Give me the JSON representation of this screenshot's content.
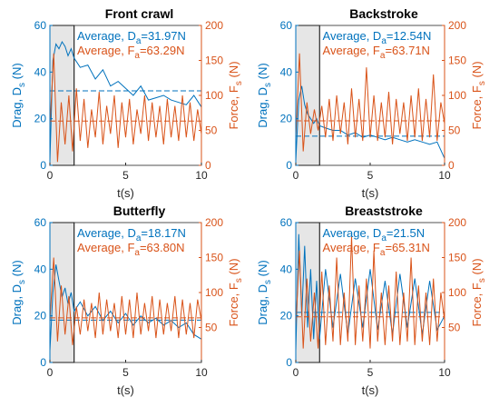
{
  "colors": {
    "drag": "#0072BD",
    "force": "#D95319",
    "axis_text": "#262626",
    "shade": "#e6e6e6"
  },
  "chart_data": [
    {
      "type": "line",
      "title": "Front crawl",
      "xlabel": "t(s)",
      "ylabel_left": "Drag, D",
      "ylabel_left_sub": "s",
      "ylabel_left_unit": " (N)",
      "ylabel_right": "Force, F",
      "ylabel_right_sub": "s",
      "ylabel_right_unit": " (N)",
      "xlim": [
        0,
        10
      ],
      "ylim_left": [
        0,
        60
      ],
      "ylim_right": [
        0,
        200
      ],
      "xticks": [
        "0",
        "5",
        "10"
      ],
      "yticks_left": [
        "0",
        "20",
        "40",
        "60"
      ],
      "yticks_right": [
        "0",
        "50",
        "100",
        "150",
        "200"
      ],
      "shaded_region": [
        0,
        1.6
      ],
      "series": [
        {
          "name": "Drag",
          "axis": "left",
          "average_label": "Average, D",
          "average_sub": "a",
          "average_value": "=31.97N",
          "average": 31.97,
          "x": [
            0,
            0.2,
            0.4,
            0.6,
            0.8,
            1.0,
            1.2,
            1.4,
            1.6,
            2.0,
            2.5,
            3.0,
            3.5,
            4.0,
            4.5,
            5.0,
            5.5,
            6.0,
            6.5,
            7.0,
            7.5,
            8.0,
            8.5,
            9.0,
            9.5,
            10.0
          ],
          "y": [
            2,
            45,
            52,
            50,
            53,
            51,
            47,
            50,
            46,
            42,
            43,
            37,
            41,
            34,
            36,
            33,
            30,
            34,
            28,
            29,
            30,
            28,
            27,
            26,
            30,
            25
          ]
        },
        {
          "name": "Force",
          "axis": "right",
          "average_label": "Average, F",
          "average_sub": "a",
          "average_value": "=63.29N",
          "average": 63.29,
          "x": [
            0,
            0.25,
            0.5,
            0.75,
            1.0,
            1.25,
            1.5,
            1.75,
            2.0,
            2.25,
            2.5,
            2.75,
            3.0,
            3.25,
            3.5,
            3.75,
            4.0,
            4.25,
            4.5,
            4.75,
            5.0,
            5.25,
            5.5,
            5.75,
            6.0,
            6.25,
            6.5,
            6.75,
            7.0,
            7.25,
            7.5,
            7.75,
            8.0,
            8.25,
            8.5,
            8.75,
            9.0,
            9.25,
            9.5,
            9.75,
            10.0
          ],
          "y": [
            55,
            160,
            5,
            90,
            30,
            100,
            20,
            110,
            35,
            95,
            25,
            80,
            40,
            105,
            30,
            85,
            45,
            100,
            25,
            90,
            40,
            95,
            30,
            80,
            45,
            100,
            35,
            90,
            40,
            85,
            30,
            95,
            40,
            85,
            35,
            100,
            40,
            90,
            35,
            80,
            45
          ]
        }
      ]
    },
    {
      "type": "line",
      "title": "Backstroke",
      "xlabel": "t(s)",
      "ylabel_left": "Drag, D",
      "ylabel_left_sub": "s",
      "ylabel_left_unit": " (N)",
      "ylabel_right": "Force, F",
      "ylabel_right_sub": "s",
      "ylabel_right_unit": " (N)",
      "xlim": [
        0,
        10
      ],
      "ylim_left": [
        0,
        60
      ],
      "ylim_right": [
        0,
        200
      ],
      "xticks": [
        "0",
        "5",
        "10"
      ],
      "yticks_left": [
        "0",
        "20",
        "40",
        "60"
      ],
      "yticks_right": [
        "0",
        "50",
        "100",
        "150",
        "200"
      ],
      "shaded_region": [
        0,
        1.6
      ],
      "series": [
        {
          "name": "Drag",
          "axis": "left",
          "average_label": "Average, D",
          "average_sub": "a",
          "average_value": "=12.54N",
          "average": 12.54,
          "x": [
            0,
            0.2,
            0.4,
            0.6,
            0.8,
            1.0,
            1.2,
            1.4,
            1.6,
            2.0,
            2.5,
            3.0,
            3.5,
            4.0,
            4.5,
            5.0,
            5.5,
            6.0,
            6.5,
            7.0,
            7.5,
            8.0,
            8.5,
            9.0,
            9.5,
            10.0
          ],
          "y": [
            2,
            28,
            34,
            26,
            22,
            20,
            18,
            20,
            17,
            16,
            15,
            15,
            13,
            14,
            12,
            13,
            12,
            11,
            12,
            11,
            10,
            11,
            10,
            9,
            10,
            3
          ]
        },
        {
          "name": "Force",
          "axis": "right",
          "average_label": "Average, F",
          "average_sub": "a",
          "average_value": "=63.71N",
          "average": 63.71,
          "x": [
            0,
            0.25,
            0.5,
            0.75,
            1.0,
            1.25,
            1.5,
            1.75,
            2.0,
            2.25,
            2.5,
            2.75,
            3.0,
            3.25,
            3.5,
            3.75,
            4.0,
            4.25,
            4.5,
            4.75,
            5.0,
            5.25,
            5.5,
            5.75,
            6.0,
            6.25,
            6.5,
            6.75,
            7.0,
            7.25,
            7.5,
            7.75,
            8.0,
            8.25,
            8.5,
            8.75,
            9.0,
            9.25,
            9.5,
            9.75,
            10.0
          ],
          "y": [
            40,
            160,
            20,
            90,
            45,
            80,
            50,
            85,
            40,
            95,
            35,
            100,
            45,
            90,
            30,
            110,
            40,
            95,
            35,
            140,
            40,
            100,
            35,
            90,
            40,
            105,
            30,
            95,
            45,
            90,
            35,
            100,
            40,
            110,
            35,
            95,
            40,
            130,
            35,
            90,
            60
          ]
        }
      ]
    },
    {
      "type": "line",
      "title": "Butterfly",
      "xlabel": "t(s)",
      "ylabel_left": "Drag, D",
      "ylabel_left_sub": "s",
      "ylabel_left_unit": " (N)",
      "ylabel_right": "Force, F",
      "ylabel_right_sub": "s",
      "ylabel_right_unit": " (N)",
      "xlim": [
        0,
        10
      ],
      "ylim_left": [
        0,
        60
      ],
      "ylim_right": [
        0,
        200
      ],
      "xticks": [
        "0",
        "5",
        "10"
      ],
      "yticks_left": [
        "0",
        "20",
        "40",
        "60"
      ],
      "yticks_right": [
        "50",
        "100",
        "150",
        "200"
      ],
      "shaded_region": [
        0,
        1.6
      ],
      "series": [
        {
          "name": "Drag",
          "axis": "left",
          "average_label": "Average, D",
          "average_sub": "a",
          "average_value": "=18.17N",
          "average": 18.17,
          "x": [
            0,
            0.2,
            0.4,
            0.6,
            0.8,
            1.0,
            1.2,
            1.4,
            1.6,
            2.0,
            2.5,
            3.0,
            3.5,
            4.0,
            4.5,
            5.0,
            5.5,
            6.0,
            6.5,
            7.0,
            7.5,
            8.0,
            8.5,
            9.0,
            9.5,
            10.0
          ],
          "y": [
            5,
            30,
            42,
            35,
            28,
            32,
            25,
            30,
            22,
            26,
            20,
            24,
            18,
            22,
            17,
            21,
            16,
            20,
            17,
            19,
            16,
            18,
            15,
            17,
            12,
            10
          ]
        },
        {
          "name": "Force",
          "axis": "right",
          "average_label": "Average, F",
          "average_sub": "a",
          "average_value": "=63.80N",
          "average": 63.8,
          "x": [
            0,
            0.25,
            0.5,
            0.75,
            1.0,
            1.25,
            1.5,
            1.75,
            2.0,
            2.25,
            2.5,
            2.75,
            3.0,
            3.25,
            3.5,
            3.75,
            4.0,
            4.25,
            4.5,
            4.75,
            5.0,
            5.25,
            5.5,
            5.75,
            6.0,
            6.25,
            6.5,
            6.75,
            7.0,
            7.25,
            7.5,
            7.75,
            8.0,
            8.25,
            8.5,
            8.75,
            9.0,
            9.25,
            9.5,
            9.75,
            10.0
          ],
          "y": [
            60,
            150,
            30,
            110,
            40,
            95,
            25,
            80,
            40,
            90,
            45,
            85,
            35,
            100,
            40,
            90,
            45,
            85,
            35,
            95,
            40,
            90,
            35,
            100,
            40,
            85,
            45,
            95,
            35,
            90,
            40,
            85,
            45,
            95,
            35,
            90,
            40,
            85,
            35,
            90,
            60
          ]
        }
      ]
    },
    {
      "type": "line",
      "title": "Breaststroke",
      "xlabel": "t(s)",
      "ylabel_left": "Drag, D",
      "ylabel_left_sub": "s",
      "ylabel_left_unit": " (N)",
      "ylabel_right": "Force, F",
      "ylabel_right_sub": "s",
      "ylabel_right_unit": " (N)",
      "xlim": [
        0,
        10
      ],
      "ylim_left": [
        0,
        60
      ],
      "ylim_right": [
        0,
        200
      ],
      "xticks": [
        "0",
        "5",
        "10"
      ],
      "yticks_left": [
        "0",
        "20",
        "40",
        "60"
      ],
      "yticks_right": [
        "50",
        "100",
        "150",
        "200"
      ],
      "shaded_region": [
        0,
        1.6
      ],
      "series": [
        {
          "name": "Drag",
          "axis": "left",
          "average_label": "Average, D",
          "average_sub": "a",
          "average_value": "=21.5N",
          "average": 21.5,
          "x": [
            0,
            0.2,
            0.4,
            0.6,
            0.8,
            1.0,
            1.2,
            1.4,
            1.6,
            2.0,
            2.5,
            3.0,
            3.5,
            4.0,
            4.5,
            5.0,
            5.5,
            6.0,
            6.5,
            7.0,
            7.5,
            8.0,
            8.5,
            9.0,
            9.5,
            10.0
          ],
          "y": [
            5,
            55,
            20,
            50,
            15,
            40,
            10,
            35,
            10,
            40,
            15,
            38,
            12,
            36,
            15,
            40,
            14,
            35,
            12,
            38,
            15,
            36,
            12,
            35,
            14,
            20
          ]
        },
        {
          "name": "Force",
          "axis": "right",
          "average_label": "Average, F",
          "average_sub": "a",
          "average_value": "=65.31N",
          "average": 65.31,
          "x": [
            0,
            0.25,
            0.5,
            0.75,
            1.0,
            1.25,
            1.5,
            1.75,
            2.0,
            2.25,
            2.5,
            2.75,
            3.0,
            3.25,
            3.5,
            3.75,
            4.0,
            4.25,
            4.5,
            4.75,
            5.0,
            5.25,
            5.5,
            5.75,
            6.0,
            6.25,
            6.5,
            6.75,
            7.0,
            7.25,
            7.5,
            7.75,
            8.0,
            8.25,
            8.5,
            8.75,
            9.0,
            9.25,
            9.5,
            9.75,
            10.0
          ],
          "y": [
            50,
            160,
            20,
            120,
            30,
            100,
            20,
            130,
            25,
            110,
            30,
            150,
            25,
            100,
            30,
            180,
            25,
            110,
            30,
            120,
            20,
            160,
            30,
            100,
            25,
            110,
            30,
            130,
            25,
            100,
            30,
            150,
            25,
            110,
            30,
            100,
            25,
            120,
            30,
            100,
            60
          ]
        }
      ]
    }
  ]
}
